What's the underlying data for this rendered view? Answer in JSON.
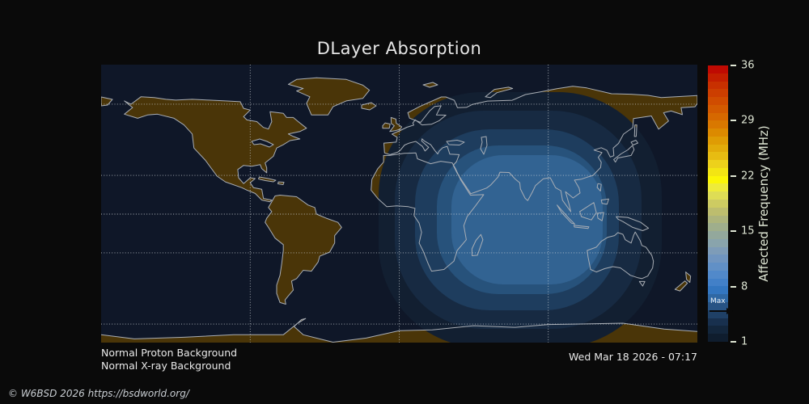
{
  "title": "DLayer Absorption",
  "status": {
    "proton": "Normal Proton Background",
    "xray": "Normal X-ray Background"
  },
  "timestamp": "Wed Mar 18 2026 - 07:17",
  "copyright": "© W6BSD 2026 https://bsdworld.org/",
  "colorbar": {
    "label": "Affected Frequency (MHz)",
    "vmin": 1,
    "vmax": 36,
    "ticks": [
      36,
      29,
      22,
      15,
      8,
      1
    ],
    "max_label": "Max",
    "segment_colors": [
      "#bf0a02",
      "#c31e00",
      "#c83000",
      "#cc3e00",
      "#d04c00",
      "#d35a00",
      "#d66800",
      "#d97800",
      "#dc8a00",
      "#df9c04",
      "#e2ac0a",
      "#e7bc12",
      "#edd11b",
      "#f3e513",
      "#fbf607",
      "#eeeb3a",
      "#dedd55",
      "#cdcb62",
      "#bdbd6e",
      "#adb47c",
      "#9fae8c",
      "#93a89c",
      "#89a4ac",
      "#7e9cb8",
      "#7095c0",
      "#6190c6",
      "#5189ca",
      "#4280c8",
      "#3376c0",
      "#2f68a4",
      "#275384",
      "#1f4066",
      "#18304e",
      "#13263c",
      "#0f1d2e"
    ]
  },
  "map": {
    "ring_colors": [
      "#121f31",
      "#172a42",
      "#1e3d5e",
      "#27527b",
      "#326392"
    ]
  },
  "colors": {
    "background": "#0a0a0a",
    "ocean": "#0f1728",
    "land": "#4a3508",
    "coastline": "#a9aeb5",
    "grid": "#ced3d8",
    "title_text": "#e6e6e6",
    "tick_text": "#dfe6d4",
    "annotation_arrow": "#0a0a0a"
  }
}
